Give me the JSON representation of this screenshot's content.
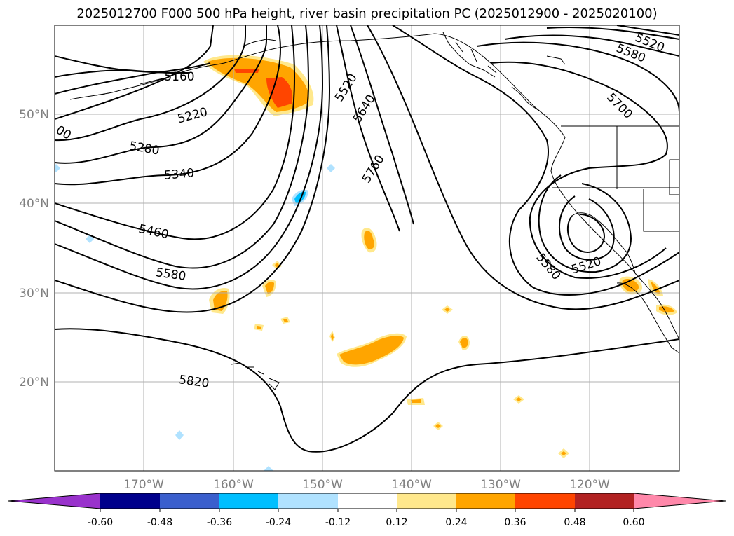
{
  "title": "2025012700 F000 500 hPa height, river basin precipitation PC (2025012900 - 2025020100)",
  "map": {
    "lat_labels": [
      "50°N",
      "40°N",
      "30°N",
      "20°N"
    ],
    "lon_labels": [
      "170°W",
      "160°W",
      "150°W",
      "140°W",
      "130°W",
      "120°W"
    ],
    "contour_labels": [
      "5160",
      "5220",
      "5280",
      "5340",
      "5460",
      "5580",
      "5820",
      "5520",
      "5640",
      "5760",
      "5520",
      "5580",
      "5700",
      "5580",
      "5520",
      "00"
    ]
  },
  "colorbar": {
    "ticks": [
      "-0.60",
      "-0.48",
      "-0.36",
      "-0.24",
      "-0.12",
      "0.12",
      "0.24",
      "0.36",
      "0.48",
      "0.60"
    ],
    "colors": [
      "#9932cc",
      "#00008b",
      "#3a5fcd",
      "#00bfff",
      "#b0e2ff",
      "#ffffff",
      "#ffe88c",
      "#ffa500",
      "#ff4500",
      "#b22222",
      "#ff88aa"
    ]
  }
}
